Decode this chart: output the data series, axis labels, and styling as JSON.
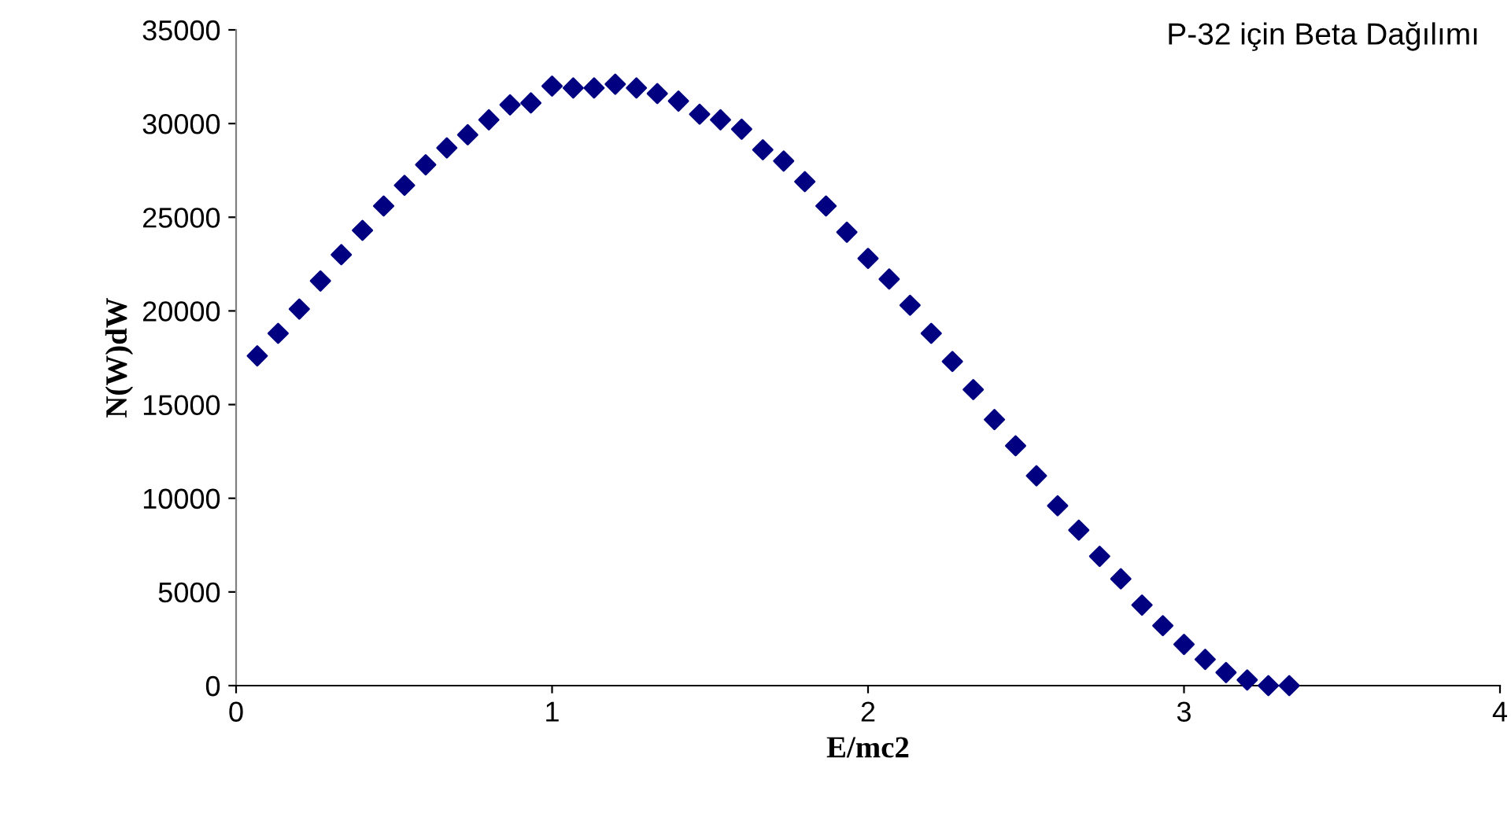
{
  "chart_data": {
    "type": "scatter",
    "title": "P-32 için Beta Dağılımı",
    "xlabel": "E/mc2",
    "ylabel": "N(W)dW",
    "x": [
      0.067,
      0.133,
      0.2,
      0.267,
      0.333,
      0.4,
      0.467,
      0.533,
      0.6,
      0.667,
      0.733,
      0.8,
      0.867,
      0.933,
      1.0,
      1.067,
      1.133,
      1.2,
      1.267,
      1.333,
      1.4,
      1.467,
      1.533,
      1.6,
      1.667,
      1.733,
      1.8,
      1.867,
      1.933,
      2.0,
      2.067,
      2.133,
      2.2,
      2.267,
      2.333,
      2.4,
      2.467,
      2.533,
      2.6,
      2.667,
      2.733,
      2.8,
      2.867,
      2.933,
      3.0,
      3.067,
      3.133,
      3.2,
      3.267,
      3.333
    ],
    "series": [
      {
        "color": "#000080",
        "values": [
          17600,
          18800,
          20100,
          21600,
          23000,
          24300,
          25600,
          26700,
          27800,
          28700,
          29400,
          30200,
          31000,
          31100,
          32000,
          31900,
          31900,
          32100,
          31900,
          31600,
          31200,
          30500,
          30200,
          29700,
          28600,
          28000,
          26900,
          25600,
          24200,
          22800,
          21700,
          20300,
          18800,
          17300,
          15800,
          14200,
          12800,
          11200,
          9600,
          8300,
          6900,
          5700,
          4300,
          3200,
          2200,
          1400,
          700,
          300,
          0,
          0
        ]
      }
    ],
    "marker": "diamond",
    "grid": false,
    "legend": false,
    "xlim": [
      0,
      4
    ],
    "xticks": [
      0,
      1,
      2,
      3,
      4
    ],
    "ylim": [
      0,
      35000
    ],
    "yticks": [
      0,
      5000,
      10000,
      15000,
      20000,
      25000,
      30000,
      35000
    ]
  }
}
